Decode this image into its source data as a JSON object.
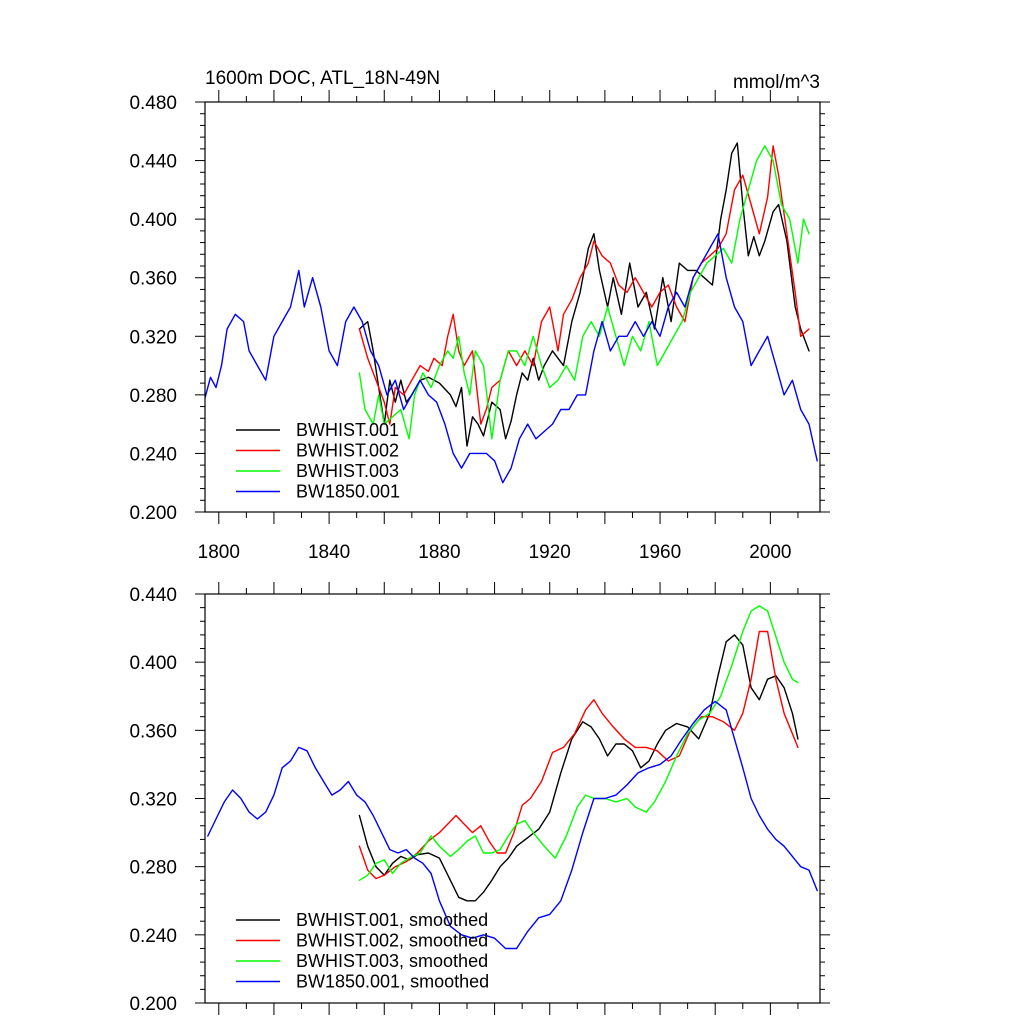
{
  "chart_data": [
    {
      "type": "line",
      "title": "1600m DOC, ATL_18N-49N",
      "units": "mmol/m^3",
      "xlabel": "",
      "ylabel": "",
      "xlim": [
        1795,
        2018
      ],
      "ylim": [
        0.2,
        0.48
      ],
      "xticks": [
        1800,
        1840,
        1880,
        1920,
        1960,
        2000
      ],
      "yticks": [
        0.2,
        0.24,
        0.28,
        0.32,
        0.36,
        0.4,
        0.44,
        0.48
      ],
      "xtick_labels": [
        "1800",
        "1840",
        "1880",
        "1920",
        "1960",
        "2000"
      ],
      "ytick_labels": [
        "0.200",
        "0.240",
        "0.280",
        "0.320",
        "0.360",
        "0.400",
        "0.440",
        "0.480"
      ],
      "legend_position": "bottom-left",
      "series": [
        {
          "name": "BWHIST.001",
          "color": "#000000",
          "x": [
            1851,
            1854,
            1856,
            1858,
            1860,
            1862,
            1864,
            1866,
            1868,
            1870,
            1873,
            1876,
            1880,
            1884,
            1886,
            1888,
            1890,
            1892,
            1894,
            1896,
            1899,
            1902,
            1904,
            1906,
            1908,
            1910,
            1912,
            1914,
            1916,
            1918,
            1921,
            1925,
            1928,
            1931,
            1934,
            1936,
            1938,
            1941,
            1943,
            1946,
            1949,
            1952,
            1955,
            1958,
            1961,
            1964,
            1967,
            1970,
            1973,
            1976,
            1979,
            1982,
            1984,
            1986,
            1988,
            1990,
            1992,
            1994,
            1996,
            1998,
            2001,
            2003,
            2006,
            2009,
            2011,
            2014
          ],
          "y": [
            0.325,
            0.33,
            0.31,
            0.285,
            0.26,
            0.29,
            0.275,
            0.29,
            0.275,
            0.28,
            0.29,
            0.292,
            0.288,
            0.28,
            0.272,
            0.285,
            0.245,
            0.265,
            0.26,
            0.252,
            0.275,
            0.27,
            0.25,
            0.262,
            0.28,
            0.295,
            0.29,
            0.305,
            0.29,
            0.3,
            0.31,
            0.3,
            0.33,
            0.35,
            0.38,
            0.39,
            0.365,
            0.34,
            0.36,
            0.335,
            0.37,
            0.34,
            0.35,
            0.325,
            0.36,
            0.33,
            0.37,
            0.365,
            0.365,
            0.36,
            0.355,
            0.4,
            0.42,
            0.445,
            0.452,
            0.41,
            0.375,
            0.388,
            0.375,
            0.385,
            0.405,
            0.41,
            0.385,
            0.34,
            0.325,
            0.31
          ]
        },
        {
          "name": "BWHIST.002",
          "color": "#ff0000",
          "x": [
            1851,
            1854,
            1857,
            1860,
            1862,
            1864,
            1867,
            1870,
            1873,
            1876,
            1878,
            1881,
            1883,
            1885,
            1887,
            1889,
            1892,
            1895,
            1897,
            1899,
            1902,
            1905,
            1908,
            1911,
            1914,
            1917,
            1920,
            1923,
            1925,
            1928,
            1931,
            1934,
            1936,
            1939,
            1942,
            1945,
            1948,
            1951,
            1954,
            1957,
            1960,
            1963,
            1966,
            1969,
            1972,
            1975,
            1978,
            1981,
            1984,
            1987,
            1990,
            1993,
            1996,
            1999,
            2001,
            2003,
            2006,
            2009,
            2011,
            2014
          ],
          "y": [
            0.325,
            0.305,
            0.29,
            0.275,
            0.26,
            0.285,
            0.28,
            0.29,
            0.3,
            0.296,
            0.305,
            0.3,
            0.32,
            0.335,
            0.31,
            0.3,
            0.31,
            0.26,
            0.27,
            0.285,
            0.29,
            0.31,
            0.3,
            0.31,
            0.3,
            0.33,
            0.34,
            0.31,
            0.335,
            0.345,
            0.36,
            0.37,
            0.385,
            0.375,
            0.37,
            0.355,
            0.35,
            0.36,
            0.35,
            0.34,
            0.35,
            0.355,
            0.34,
            0.33,
            0.36,
            0.37,
            0.375,
            0.38,
            0.39,
            0.42,
            0.43,
            0.41,
            0.39,
            0.415,
            0.45,
            0.43,
            0.39,
            0.35,
            0.32,
            0.325
          ]
        },
        {
          "name": "BWHIST.003",
          "color": "#00ff00",
          "x": [
            1851,
            1853,
            1856,
            1858,
            1860,
            1863,
            1866,
            1869,
            1871,
            1874,
            1877,
            1880,
            1883,
            1885,
            1887,
            1889,
            1891,
            1893,
            1896,
            1899,
            1902,
            1905,
            1908,
            1911,
            1914,
            1917,
            1920,
            1923,
            1926,
            1929,
            1932,
            1935,
            1938,
            1941,
            1944,
            1947,
            1950,
            1953,
            1956,
            1959,
            1962,
            1965,
            1968,
            1971,
            1974,
            1977,
            1980,
            1983,
            1986,
            1989,
            1992,
            1995,
            1998,
            2001,
            2004,
            2007,
            2010,
            2012,
            2014
          ],
          "y": [
            0.295,
            0.27,
            0.26,
            0.28,
            0.26,
            0.265,
            0.27,
            0.25,
            0.28,
            0.295,
            0.285,
            0.3,
            0.31,
            0.305,
            0.32,
            0.295,
            0.28,
            0.31,
            0.3,
            0.25,
            0.29,
            0.31,
            0.31,
            0.3,
            0.32,
            0.3,
            0.285,
            0.29,
            0.3,
            0.29,
            0.32,
            0.33,
            0.32,
            0.34,
            0.32,
            0.3,
            0.32,
            0.31,
            0.33,
            0.3,
            0.31,
            0.32,
            0.33,
            0.35,
            0.36,
            0.37,
            0.375,
            0.38,
            0.37,
            0.4,
            0.42,
            0.44,
            0.45,
            0.44,
            0.41,
            0.4,
            0.37,
            0.4,
            0.39
          ]
        },
        {
          "name": "BW1850.001",
          "color": "#0000ff",
          "x": [
            1795,
            1797,
            1799,
            1801,
            1803,
            1806,
            1809,
            1811,
            1814,
            1817,
            1820,
            1823,
            1826,
            1829,
            1831,
            1834,
            1837,
            1840,
            1843,
            1846,
            1849,
            1852,
            1855,
            1858,
            1861,
            1864,
            1867,
            1870,
            1873,
            1876,
            1879,
            1882,
            1885,
            1888,
            1891,
            1894,
            1897,
            1900,
            1903,
            1906,
            1909,
            1912,
            1915,
            1918,
            1921,
            1924,
            1927,
            1930,
            1933,
            1936,
            1939,
            1942,
            1945,
            1948,
            1951,
            1954,
            1957,
            1960,
            1963,
            1966,
            1969,
            1972,
            1975,
            1978,
            1981,
            1984,
            1987,
            1990,
            1993,
            1996,
            1999,
            2002,
            2005,
            2008,
            2011,
            2014,
            2017
          ],
          "y": [
            0.278,
            0.292,
            0.285,
            0.3,
            0.325,
            0.335,
            0.33,
            0.31,
            0.3,
            0.29,
            0.32,
            0.33,
            0.34,
            0.365,
            0.34,
            0.36,
            0.34,
            0.31,
            0.3,
            0.33,
            0.34,
            0.33,
            0.31,
            0.3,
            0.28,
            0.29,
            0.27,
            0.28,
            0.29,
            0.28,
            0.275,
            0.26,
            0.24,
            0.23,
            0.24,
            0.24,
            0.24,
            0.235,
            0.22,
            0.23,
            0.25,
            0.26,
            0.25,
            0.255,
            0.26,
            0.27,
            0.27,
            0.28,
            0.28,
            0.31,
            0.33,
            0.31,
            0.32,
            0.32,
            0.33,
            0.32,
            0.33,
            0.32,
            0.34,
            0.35,
            0.34,
            0.36,
            0.37,
            0.38,
            0.39,
            0.36,
            0.34,
            0.33,
            0.3,
            0.31,
            0.32,
            0.3,
            0.28,
            0.29,
            0.27,
            0.26,
            0.235
          ]
        }
      ]
    },
    {
      "type": "line",
      "title": "",
      "units": "",
      "xlabel": "",
      "ylabel": "",
      "xlim": [
        1795,
        2018
      ],
      "ylim": [
        0.2,
        0.44
      ],
      "xticks": [
        1800,
        1840,
        1880,
        1920,
        1960,
        2000
      ],
      "yticks": [
        0.2,
        0.24,
        0.28,
        0.32,
        0.36,
        0.4,
        0.44
      ],
      "ytick_labels": [
        "0.200",
        "0.240",
        "0.280",
        "0.320",
        "0.360",
        "0.400",
        "0.440"
      ],
      "legend_position": "bottom-left",
      "series": [
        {
          "name": "BWHIST.001, smoothed",
          "color": "#000000",
          "x": [
            1851,
            1854,
            1857,
            1860,
            1863,
            1866,
            1869,
            1872,
            1876,
            1880,
            1884,
            1887,
            1890,
            1893,
            1896,
            1899,
            1902,
            1905,
            1908,
            1912,
            1916,
            1920,
            1924,
            1928,
            1932,
            1935,
            1938,
            1941,
            1944,
            1947,
            1950,
            1953,
            1956,
            1959,
            1962,
            1966,
            1970,
            1974,
            1978,
            1981,
            1984,
            1987,
            1990,
            1993,
            1996,
            1999,
            2002,
            2005,
            2008,
            2010
          ],
          "y": [
            0.31,
            0.292,
            0.28,
            0.275,
            0.282,
            0.286,
            0.284,
            0.287,
            0.288,
            0.285,
            0.272,
            0.262,
            0.26,
            0.26,
            0.265,
            0.272,
            0.28,
            0.285,
            0.292,
            0.297,
            0.302,
            0.312,
            0.335,
            0.355,
            0.365,
            0.362,
            0.355,
            0.345,
            0.352,
            0.352,
            0.348,
            0.338,
            0.342,
            0.352,
            0.36,
            0.364,
            0.362,
            0.355,
            0.37,
            0.392,
            0.412,
            0.416,
            0.41,
            0.385,
            0.378,
            0.39,
            0.392,
            0.385,
            0.37,
            0.355
          ]
        },
        {
          "name": "BWHIST.002, smoothed",
          "color": "#ff0000",
          "x": [
            1851,
            1854,
            1857,
            1860,
            1864,
            1868,
            1872,
            1876,
            1880,
            1883,
            1886,
            1889,
            1892,
            1895,
            1898,
            1901,
            1904,
            1907,
            1910,
            1913,
            1917,
            1921,
            1925,
            1929,
            1933,
            1936,
            1939,
            1943,
            1947,
            1951,
            1955,
            1959,
            1963,
            1967,
            1971,
            1975,
            1979,
            1983,
            1987,
            1990,
            1993,
            1996,
            1999,
            2002,
            2005,
            2008,
            2010
          ],
          "y": [
            0.292,
            0.278,
            0.273,
            0.275,
            0.28,
            0.283,
            0.288,
            0.295,
            0.3,
            0.305,
            0.31,
            0.305,
            0.3,
            0.304,
            0.295,
            0.288,
            0.288,
            0.3,
            0.316,
            0.32,
            0.33,
            0.347,
            0.35,
            0.358,
            0.372,
            0.378,
            0.37,
            0.362,
            0.355,
            0.35,
            0.35,
            0.348,
            0.342,
            0.345,
            0.36,
            0.368,
            0.368,
            0.365,
            0.36,
            0.37,
            0.39,
            0.418,
            0.418,
            0.39,
            0.37,
            0.358,
            0.35
          ]
        },
        {
          "name": "BWHIST.003, smoothed",
          "color": "#00ff00",
          "x": [
            1851,
            1854,
            1857,
            1860,
            1863,
            1866,
            1869,
            1873,
            1877,
            1880,
            1884,
            1887,
            1890,
            1893,
            1896,
            1899,
            1902,
            1905,
            1908,
            1911,
            1914,
            1918,
            1922,
            1926,
            1930,
            1933,
            1936,
            1940,
            1944,
            1948,
            1951,
            1955,
            1958,
            1962,
            1966,
            1970,
            1974,
            1978,
            1982,
            1986,
            1990,
            1993,
            1996,
            1999,
            2002,
            2005,
            2008,
            2010
          ],
          "y": [
            0.272,
            0.275,
            0.282,
            0.284,
            0.276,
            0.282,
            0.285,
            0.288,
            0.298,
            0.292,
            0.286,
            0.29,
            0.295,
            0.298,
            0.288,
            0.288,
            0.29,
            0.298,
            0.305,
            0.307,
            0.3,
            0.292,
            0.285,
            0.298,
            0.315,
            0.322,
            0.32,
            0.32,
            0.318,
            0.32,
            0.315,
            0.312,
            0.318,
            0.33,
            0.345,
            0.358,
            0.366,
            0.37,
            0.38,
            0.398,
            0.418,
            0.43,
            0.433,
            0.43,
            0.415,
            0.4,
            0.39,
            0.388
          ]
        },
        {
          "name": "BW1850.001, smoothed",
          "color": "#0000ff",
          "x": [
            1796,
            1799,
            1802,
            1805,
            1808,
            1811,
            1814,
            1817,
            1820,
            1823,
            1826,
            1829,
            1832,
            1835,
            1838,
            1841,
            1844,
            1847,
            1850,
            1853,
            1856,
            1859,
            1862,
            1865,
            1868,
            1871,
            1874,
            1877,
            1880,
            1884,
            1888,
            1892,
            1896,
            1900,
            1904,
            1908,
            1912,
            1916,
            1920,
            1924,
            1928,
            1932,
            1936,
            1940,
            1944,
            1948,
            1952,
            1956,
            1960,
            1964,
            1968,
            1972,
            1976,
            1980,
            1984,
            1987,
            1990,
            1993,
            1996,
            1999,
            2002,
            2005,
            2008,
            2011,
            2014,
            2017
          ],
          "y": [
            0.298,
            0.308,
            0.318,
            0.325,
            0.32,
            0.312,
            0.308,
            0.312,
            0.322,
            0.338,
            0.342,
            0.35,
            0.348,
            0.338,
            0.33,
            0.322,
            0.325,
            0.33,
            0.322,
            0.318,
            0.31,
            0.3,
            0.29,
            0.288,
            0.29,
            0.285,
            0.282,
            0.276,
            0.26,
            0.245,
            0.24,
            0.238,
            0.24,
            0.238,
            0.232,
            0.232,
            0.242,
            0.25,
            0.252,
            0.26,
            0.278,
            0.3,
            0.32,
            0.32,
            0.322,
            0.328,
            0.335,
            0.338,
            0.34,
            0.345,
            0.355,
            0.364,
            0.372,
            0.377,
            0.372,
            0.355,
            0.338,
            0.32,
            0.31,
            0.302,
            0.296,
            0.292,
            0.286,
            0.28,
            0.278,
            0.266
          ]
        }
      ]
    }
  ]
}
